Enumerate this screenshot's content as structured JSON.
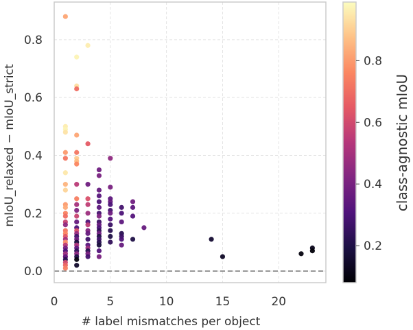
{
  "chart_data": {
    "type": "scatter",
    "title": "",
    "xlabel": "# label mismatches per object",
    "ylabel": "mIoU_relaxed − mIoU_strict",
    "xlim": [
      0,
      24.2
    ],
    "ylim": [
      -0.04,
      0.93
    ],
    "xticks": [
      0,
      5,
      10,
      15,
      20
    ],
    "xtick_labels": [
      "0",
      "5",
      "10",
      "15",
      "20"
    ],
    "yticks": [
      0.0,
      0.2,
      0.4,
      0.6,
      0.8
    ],
    "ytick_labels": [
      "0.0",
      "0.2",
      "0.4",
      "0.6",
      "0.8"
    ],
    "grid": true,
    "reference_line": {
      "y": 0.0,
      "style": "dashed"
    },
    "colormap": "magma",
    "colorbar": {
      "label": "class-agnostic mIoU",
      "range": [
        0.08,
        0.99
      ],
      "ticks": [
        0.2,
        0.4,
        0.6,
        0.8
      ],
      "tick_labels": [
        "0.2",
        "0.4",
        "0.6",
        "0.8"
      ]
    },
    "points": [
      [
        1,
        0.88,
        0.82
      ],
      [
        1,
        0.5,
        0.96
      ],
      [
        1,
        0.49,
        0.97
      ],
      [
        1,
        0.48,
        0.94
      ],
      [
        1,
        0.41,
        0.8
      ],
      [
        1,
        0.39,
        0.72
      ],
      [
        1,
        0.34,
        0.95
      ],
      [
        1,
        0.3,
        0.85
      ],
      [
        1,
        0.28,
        0.91
      ],
      [
        1,
        0.23,
        0.8
      ],
      [
        1,
        0.22,
        0.83
      ],
      [
        1,
        0.2,
        0.75
      ],
      [
        1,
        0.19,
        0.7
      ],
      [
        1,
        0.17,
        0.58
      ],
      [
        1,
        0.16,
        0.45
      ],
      [
        1,
        0.14,
        0.72
      ],
      [
        1,
        0.13,
        0.76
      ],
      [
        1,
        0.12,
        0.64
      ],
      [
        1,
        0.11,
        0.5
      ],
      [
        1,
        0.1,
        0.78
      ],
      [
        1,
        0.09,
        0.55
      ],
      [
        1,
        0.08,
        0.4
      ],
      [
        1,
        0.07,
        0.3
      ],
      [
        1,
        0.06,
        0.48
      ],
      [
        1,
        0.05,
        0.52
      ],
      [
        1,
        0.05,
        0.35
      ],
      [
        1,
        0.04,
        0.22
      ],
      [
        1,
        0.03,
        0.6
      ],
      [
        1,
        0.02,
        0.68
      ],
      [
        1,
        0.01,
        0.74
      ],
      [
        2,
        0.74,
        0.97
      ],
      [
        2,
        0.64,
        0.93
      ],
      [
        2,
        0.63,
        0.7
      ],
      [
        2,
        0.47,
        0.82
      ],
      [
        2,
        0.41,
        0.72
      ],
      [
        2,
        0.39,
        0.9
      ],
      [
        2,
        0.38,
        0.86
      ],
      [
        2,
        0.37,
        0.76
      ],
      [
        2,
        0.3,
        0.55
      ],
      [
        2,
        0.25,
        0.74
      ],
      [
        2,
        0.23,
        0.5
      ],
      [
        2,
        0.21,
        0.42
      ],
      [
        2,
        0.19,
        0.58
      ],
      [
        2,
        0.17,
        0.36
      ],
      [
        2,
        0.15,
        0.3
      ],
      [
        2,
        0.14,
        0.62
      ],
      [
        2,
        0.13,
        0.47
      ],
      [
        2,
        0.12,
        0.27
      ],
      [
        2,
        0.11,
        0.38
      ],
      [
        2,
        0.1,
        0.18
      ],
      [
        2,
        0.09,
        0.52
      ],
      [
        2,
        0.08,
        0.35
      ],
      [
        2,
        0.07,
        0.24
      ],
      [
        2,
        0.06,
        0.44
      ],
      [
        2,
        0.05,
        0.2
      ],
      [
        2,
        0.04,
        0.1
      ],
      [
        2,
        0.02,
        0.15
      ],
      [
        3,
        0.78,
        0.96
      ],
      [
        3,
        0.44,
        0.65
      ],
      [
        3,
        0.3,
        0.38
      ],
      [
        3,
        0.25,
        0.62
      ],
      [
        3,
        0.23,
        0.56
      ],
      [
        3,
        0.2,
        0.48
      ],
      [
        3,
        0.17,
        0.3
      ],
      [
        3,
        0.16,
        0.55
      ],
      [
        3,
        0.14,
        0.42
      ],
      [
        3,
        0.13,
        0.36
      ],
      [
        3,
        0.11,
        0.27
      ],
      [
        3,
        0.09,
        0.33
      ],
      [
        3,
        0.08,
        0.48
      ],
      [
        3,
        0.07,
        0.22
      ],
      [
        3,
        0.06,
        0.4
      ],
      [
        3,
        0.05,
        0.28
      ],
      [
        4,
        0.35,
        0.38
      ],
      [
        4,
        0.33,
        0.4
      ],
      [
        4,
        0.28,
        0.36
      ],
      [
        4,
        0.26,
        0.33
      ],
      [
        4,
        0.24,
        0.3
      ],
      [
        4,
        0.22,
        0.34
      ],
      [
        4,
        0.2,
        0.28
      ],
      [
        4,
        0.19,
        0.42
      ],
      [
        4,
        0.17,
        0.26
      ],
      [
        4,
        0.16,
        0.36
      ],
      [
        4,
        0.15,
        0.3
      ],
      [
        4,
        0.14,
        0.24
      ],
      [
        4,
        0.13,
        0.38
      ],
      [
        4,
        0.12,
        0.2
      ],
      [
        4,
        0.11,
        0.28
      ],
      [
        4,
        0.1,
        0.22
      ],
      [
        4,
        0.09,
        0.18
      ],
      [
        4,
        0.07,
        0.32
      ],
      [
        4,
        0.05,
        0.4
      ],
      [
        5,
        0.39,
        0.45
      ],
      [
        5,
        0.29,
        0.4
      ],
      [
        5,
        0.25,
        0.34
      ],
      [
        5,
        0.24,
        0.36
      ],
      [
        5,
        0.23,
        0.3
      ],
      [
        5,
        0.21,
        0.28
      ],
      [
        5,
        0.2,
        0.38
      ],
      [
        5,
        0.18,
        0.32
      ],
      [
        5,
        0.16,
        0.26
      ],
      [
        5,
        0.14,
        0.22
      ],
      [
        5,
        0.12,
        0.2
      ],
      [
        5,
        0.1,
        0.24
      ],
      [
        6,
        0.22,
        0.28
      ],
      [
        6,
        0.2,
        0.3
      ],
      [
        6,
        0.17,
        0.34
      ],
      [
        6,
        0.13,
        0.22
      ],
      [
        6,
        0.12,
        0.26
      ],
      [
        6,
        0.11,
        0.3
      ],
      [
        6,
        0.09,
        0.36
      ],
      [
        7,
        0.24,
        0.38
      ],
      [
        7,
        0.22,
        0.34
      ],
      [
        7,
        0.19,
        0.32
      ],
      [
        7,
        0.11,
        0.2
      ],
      [
        8,
        0.15,
        0.36
      ],
      [
        14,
        0.11,
        0.16
      ],
      [
        15,
        0.05,
        0.14
      ],
      [
        22,
        0.06,
        0.1
      ],
      [
        23,
        0.08,
        0.12
      ],
      [
        23,
        0.07,
        0.09
      ]
    ]
  }
}
